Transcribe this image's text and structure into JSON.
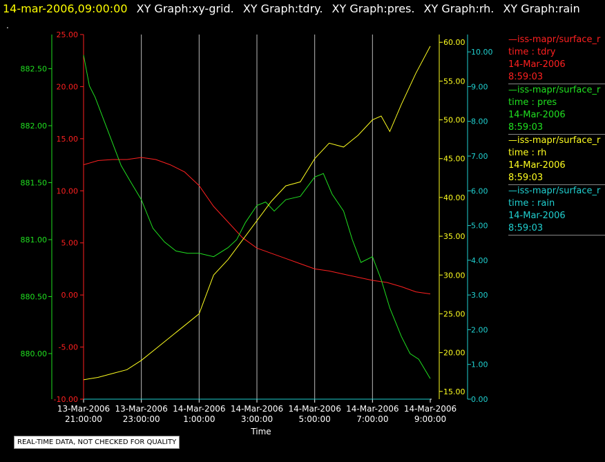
{
  "header": {
    "timestamp": "14-mar-2006,09:00:00",
    "graphs": [
      "XY Graph:xy-grid.",
      "XY Graph:tdry.",
      "XY Graph:pres.",
      "XY Graph:rh.",
      "XY Graph:rain"
    ]
  },
  "dot": ".",
  "notice": "REAL-TIME DATA, NOT CHECKED FOR QUALITY",
  "colors": {
    "tdry": "#ff2020",
    "pres": "#20e020",
    "rh": "#ffff20",
    "rain": "#20d0d0",
    "grid": "#d0d0d0"
  },
  "legend": [
    {
      "name": "—iss-mapr/surface_r",
      "var": "time : tdry",
      "date": "14-Mar-2006",
      "time": "8:59:03",
      "color": "#ff2020"
    },
    {
      "name": "—iss-mapr/surface_r",
      "var": "time : pres",
      "date": "14-Mar-2006",
      "time": "8:59:03",
      "color": "#20e020"
    },
    {
      "name": "—iss-mapr/surface_r",
      "var": "time : rh",
      "date": "14-Mar-2006",
      "time": "8:59:03",
      "color": "#ffff20"
    },
    {
      "name": "—iss-mapr/surface_r",
      "var": "time : rain",
      "date": "14-Mar-2006",
      "time": "8:59:03",
      "color": "#20d0d0"
    }
  ],
  "chart_data": {
    "type": "line",
    "xlabel": "Time",
    "x_ticks": [
      [
        "13-Mar-2006",
        "21:00:00"
      ],
      [
        "13-Mar-2006",
        "23:00:00"
      ],
      [
        "14-Mar-2006",
        "1:00:00"
      ],
      [
        "14-Mar-2006",
        "3:00:00"
      ],
      [
        "14-Mar-2006",
        "5:00:00"
      ],
      [
        "14-Mar-2006",
        "7:00:00"
      ],
      [
        "14-Mar-2006",
        "9:00:00"
      ]
    ],
    "x_tick_hours": [
      0,
      2,
      4,
      6,
      8,
      10,
      12
    ],
    "axes": {
      "pres": {
        "ylim": [
          879.6,
          882.8
        ],
        "ticks": [
          "880.00",
          "880.50",
          "881.00",
          "881.50",
          "882.00",
          "882.50"
        ],
        "tick_values": [
          880.0,
          880.5,
          881.0,
          881.5,
          882.0,
          882.5
        ]
      },
      "tdry": {
        "ylim": [
          -10,
          25
        ],
        "ticks": [
          "-10.00",
          "-5.00",
          "0.00",
          "5.00",
          "10.00",
          "15.00",
          "20.00",
          "25.00"
        ],
        "tick_values": [
          -10,
          -5,
          0,
          5,
          10,
          15,
          20,
          25
        ]
      },
      "rh": {
        "ylim": [
          14,
          61
        ],
        "ticks": [
          "15.00",
          "20.00",
          "25.00",
          "30.00",
          "35.00",
          "40.00",
          "45.00",
          "50.00",
          "55.00",
          "60.00"
        ],
        "tick_values": [
          15,
          20,
          25,
          30,
          35,
          40,
          45,
          50,
          55,
          60
        ]
      },
      "rain": {
        "ylim": [
          0,
          10.5
        ],
        "ticks": [
          "0.00",
          "1.00",
          "2.00",
          "3.00",
          "4.00",
          "5.00",
          "6.00",
          "7.00",
          "8.00",
          "9.00",
          "10.00"
        ],
        "tick_values": [
          0,
          1,
          2,
          3,
          4,
          5,
          6,
          7,
          8,
          9,
          10
        ]
      }
    },
    "series": [
      {
        "key": "tdry",
        "x": [
          0,
          0.5,
          1,
          1.5,
          2,
          2.5,
          3,
          3.5,
          4,
          4.5,
          5,
          5.5,
          6,
          6.5,
          7,
          7.5,
          8,
          8.5,
          9,
          9.5,
          10,
          10.5,
          11,
          11.5,
          12
        ],
        "y": [
          12.5,
          12.9,
          13.0,
          13.0,
          13.2,
          13.0,
          12.5,
          11.8,
          10.5,
          8.5,
          7.0,
          5.5,
          4.5,
          4.0,
          3.5,
          3.0,
          2.5,
          2.3,
          2.0,
          1.7,
          1.4,
          1.2,
          0.8,
          0.3,
          0.1
        ]
      },
      {
        "key": "pres",
        "x": [
          0,
          0.2,
          0.4,
          0.7,
          1,
          1.3,
          1.6,
          2,
          2.4,
          2.8,
          3.2,
          3.6,
          4,
          4.5,
          5,
          5.3,
          5.6,
          6,
          6.3,
          6.6,
          7,
          7.5,
          8,
          8.3,
          8.6,
          9,
          9.3,
          9.6,
          10,
          10.3,
          10.6,
          11,
          11.3,
          11.6,
          12
        ],
        "y": [
          882.62,
          882.35,
          882.25,
          882.05,
          881.85,
          881.65,
          881.52,
          881.35,
          881.1,
          880.98,
          880.9,
          880.88,
          880.88,
          880.85,
          880.93,
          881.0,
          881.15,
          881.3,
          881.33,
          881.25,
          881.35,
          881.38,
          881.55,
          881.58,
          881.4,
          881.25,
          881.0,
          880.8,
          880.85,
          880.65,
          880.4,
          880.15,
          880.0,
          879.95,
          879.78
        ]
      },
      {
        "key": "rh",
        "x": [
          0,
          0.5,
          1,
          1.5,
          2,
          2.5,
          3,
          3.5,
          4,
          4.5,
          5,
          5.5,
          6,
          6.5,
          7,
          7.5,
          8,
          8.5,
          9,
          9.5,
          10,
          10.3,
          10.6,
          11,
          11.5,
          12
        ],
        "y": [
          16.5,
          16.8,
          17.3,
          17.8,
          19.0,
          20.5,
          22.0,
          23.5,
          25.0,
          30.0,
          32.0,
          34.5,
          37.0,
          39.5,
          41.5,
          42.0,
          45.0,
          47.0,
          46.5,
          48.0,
          50.0,
          50.5,
          48.5,
          52.0,
          56.0,
          59.5
        ]
      },
      {
        "key": "rain",
        "x": [
          0,
          12
        ],
        "y": [
          0,
          0
        ]
      }
    ]
  }
}
